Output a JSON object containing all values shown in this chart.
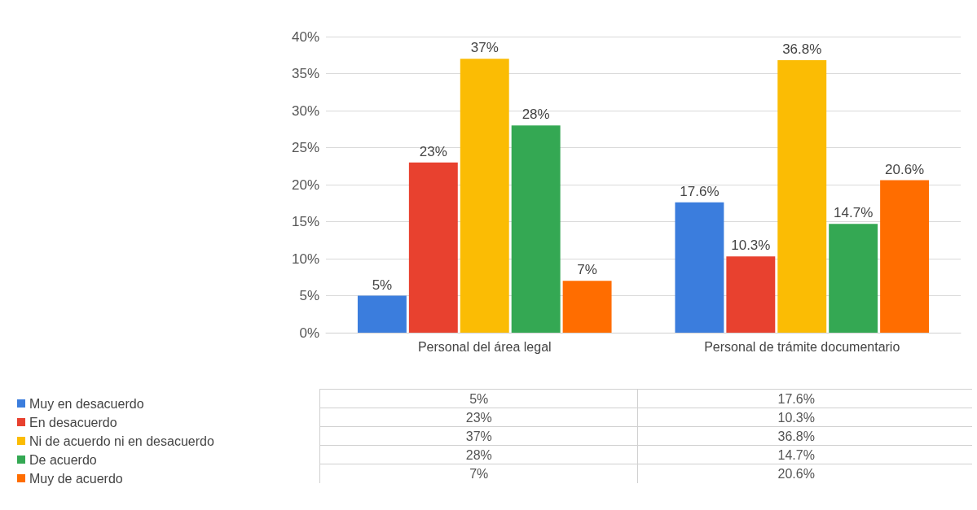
{
  "chart_data": {
    "type": "bar",
    "categories": [
      "Personal del área legal",
      "Personal de trámite documentario"
    ],
    "series": [
      {
        "name": "Muy en desacuerdo",
        "color": "#3b7ddd",
        "values": [
          5,
          17.6
        ],
        "value_labels": [
          "5%",
          "17.6%"
        ]
      },
      {
        "name": "En desacuerdo",
        "color": "#e8412f",
        "values": [
          23,
          10.3
        ],
        "value_labels": [
          "23%",
          "10.3%"
        ]
      },
      {
        "name": "Ni de acuerdo ni en desacuerdo",
        "color": "#fbbc04",
        "values": [
          37,
          36.8
        ],
        "value_labels": [
          "37%",
          "36.8%"
        ]
      },
      {
        "name": "De acuerdo",
        "color": "#34a853",
        "values": [
          28,
          14.7
        ],
        "value_labels": [
          "28%",
          "14.7%"
        ]
      },
      {
        "name": "Muy de acuerdo",
        "color": "#ff6d00",
        "values": [
          7,
          20.6
        ],
        "value_labels": [
          "7%",
          "20.6%"
        ]
      }
    ],
    "ylim": [
      0,
      40
    ],
    "yticks": [
      {
        "value": 0,
        "label": "0%"
      },
      {
        "value": 5,
        "label": "5%"
      },
      {
        "value": 10,
        "label": "10%"
      },
      {
        "value": 15,
        "label": "15%"
      },
      {
        "value": 20,
        "label": "20%"
      },
      {
        "value": 25,
        "label": "25%"
      },
      {
        "value": 30,
        "label": "30%"
      },
      {
        "value": 35,
        "label": "35%"
      },
      {
        "value": 40,
        "label": "40%"
      }
    ],
    "grid": "y",
    "legend": "bottom left"
  }
}
